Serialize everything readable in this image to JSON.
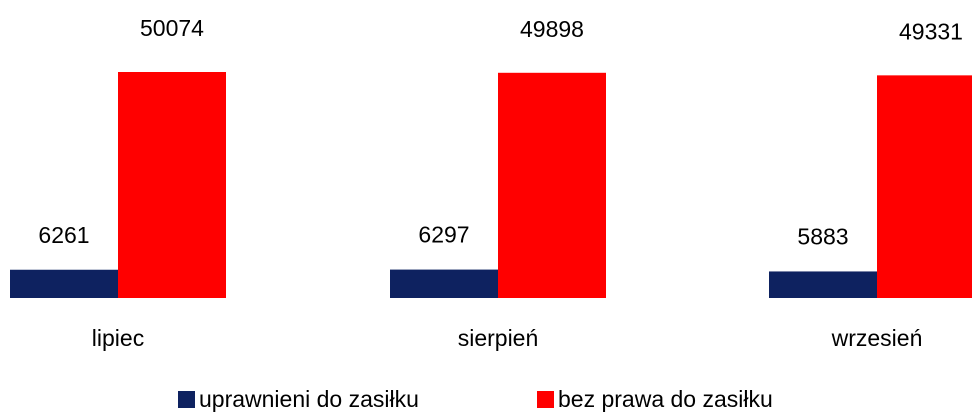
{
  "chart_data": {
    "type": "bar",
    "categories": [
      "lipiec",
      "sierpień",
      "wrzesień"
    ],
    "series": [
      {
        "name": "uprawnieni do zasiłku",
        "color": "#0e2260",
        "values": [
          6261,
          6297,
          5883
        ]
      },
      {
        "name": "bez prawa do zasiłku",
        "color": "#ff0000",
        "values": [
          50074,
          49898,
          49331
        ]
      }
    ]
  }
}
